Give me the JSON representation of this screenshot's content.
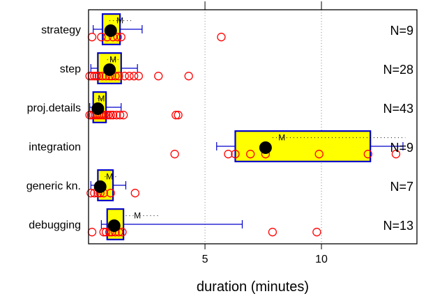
{
  "chart_data": {
    "type": "boxplot",
    "xlabel": "duration (minutes)",
    "x_ticks": [
      5,
      10
    ],
    "xlim": [
      0,
      14.1
    ],
    "grid": "vertical dotted lines at ticks",
    "mean_marker": "M",
    "colors": {
      "box_fill": "#ffff00",
      "box_border": "#0000cc",
      "whisker": "#0000cc",
      "outlier": "#ff0000",
      "median": "#000000"
    },
    "categories": [
      {
        "name": "strategy",
        "n_label": "N=9",
        "q1": 0.6,
        "median": 0.95,
        "q3": 1.35,
        "whisker_low": 0.2,
        "whisker_high": 2.3,
        "mean": 1.35,
        "mean_ci": [
          0.9,
          1.85
        ],
        "points": [
          0.15,
          0.55,
          0.8,
          1.05,
          1.25,
          1.4,
          5.7
        ]
      },
      {
        "name": "step",
        "n_label": "N=28",
        "q1": 0.4,
        "median": 0.9,
        "q3": 1.4,
        "whisker_low": 0.1,
        "whisker_high": 2.1,
        "mean": 1.05,
        "mean_ci": [
          0.8,
          1.3
        ],
        "points": [
          0.05,
          0.15,
          0.25,
          0.35,
          0.45,
          0.6,
          0.75,
          0.9,
          1.0,
          1.15,
          1.3,
          1.55,
          1.75,
          1.95,
          2.15,
          3.0,
          4.3
        ]
      },
      {
        "name": "proj.details",
        "n_label": "N=43",
        "q1": 0.2,
        "median": 0.4,
        "q3": 0.75,
        "whisker_low": 0.05,
        "whisker_high": 1.4,
        "mean": 0.55,
        "mean_ci": [
          0.4,
          0.7
        ],
        "points": [
          0.05,
          0.12,
          0.2,
          0.28,
          0.36,
          0.44,
          0.52,
          0.6,
          0.68,
          0.76,
          0.84,
          0.95,
          1.05,
          1.2,
          1.35,
          1.5,
          3.75,
          3.85
        ]
      },
      {
        "name": "integration",
        "n_label": "N=9",
        "q1": 6.3,
        "median": 7.6,
        "q3": 12.1,
        "whisker_low": 5.5,
        "whisker_high": 13.5,
        "mean": 8.3,
        "mean_ci": [
          7.9,
          13.6
        ],
        "points": [
          3.7,
          6.0,
          6.3,
          6.95,
          7.6,
          9.9,
          12.0,
          13.2
        ]
      },
      {
        "name": "generic kn.",
        "n_label": "N=7",
        "q1": 0.4,
        "median": 0.5,
        "q3": 1.05,
        "whisker_low": 0.1,
        "whisker_high": 1.6,
        "mean": 0.9,
        "mean_ci": [
          0.7,
          1.3
        ],
        "points": [
          0.1,
          0.25,
          0.4,
          0.5,
          0.65,
          0.95,
          2.0
        ]
      },
      {
        "name": "debugging",
        "n_label": "N=13",
        "q1": 0.8,
        "median": 1.1,
        "q3": 1.5,
        "whisker_low": 0.55,
        "whisker_high": 6.6,
        "mean": 2.1,
        "mean_ci": [
          1.6,
          3.0
        ],
        "points": [
          0.15,
          0.65,
          0.75,
          0.9,
          1.0,
          1.15,
          1.3,
          1.45,
          7.9,
          9.8
        ]
      }
    ]
  }
}
